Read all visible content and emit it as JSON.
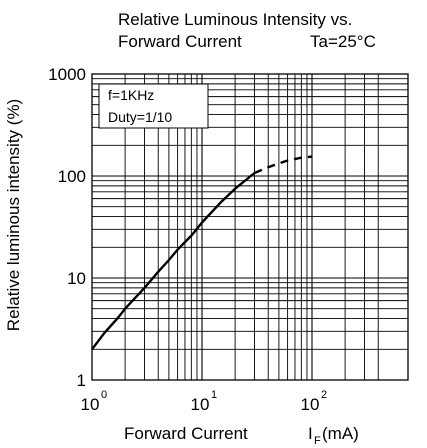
{
  "chart_data": {
    "type": "line",
    "title_line1": "Relative Luminous Intensity vs.",
    "title_line2": "Forward Current",
    "condition": "Ta=25°C",
    "xlabel": "Forward Current",
    "xlabel_symbol": "I",
    "xlabel_subscript": "F",
    "xlabel_unit": "(mA)",
    "ylabel": "Relative luminous intensity (%)",
    "x_scale": "log",
    "y_scale": "log",
    "xlim": [
      1,
      500
    ],
    "ylim": [
      1,
      1000
    ],
    "x_ticks": [
      {
        "value": 1,
        "base": "10",
        "exp": "0"
      },
      {
        "value": 10,
        "base": "10",
        "exp": "1"
      },
      {
        "value": 100,
        "base": "10",
        "exp": "2"
      }
    ],
    "y_ticks": [
      {
        "value": 1,
        "label": "1"
      },
      {
        "value": 10,
        "label": "10"
      },
      {
        "value": 100,
        "label": "100"
      },
      {
        "value": 1000,
        "label": "1000"
      }
    ],
    "grid": true,
    "annotations": [
      "f=1KHz",
      "Duty=1/10"
    ],
    "annotation_placement": "top-left",
    "series": [
      {
        "style": "solid",
        "x": [
          1,
          1.3,
          1.7,
          2,
          3,
          4,
          5,
          6,
          8,
          10,
          15,
          20,
          30
        ],
        "y": [
          2,
          2.9,
          4,
          5,
          8,
          11.5,
          15,
          19,
          26,
          35,
          56,
          75,
          107
        ]
      },
      {
        "style": "dashed",
        "x": [
          30,
          40,
          50,
          60,
          80,
          100
        ],
        "y": [
          107,
          122,
          133,
          142,
          151,
          155
        ]
      }
    ]
  }
}
